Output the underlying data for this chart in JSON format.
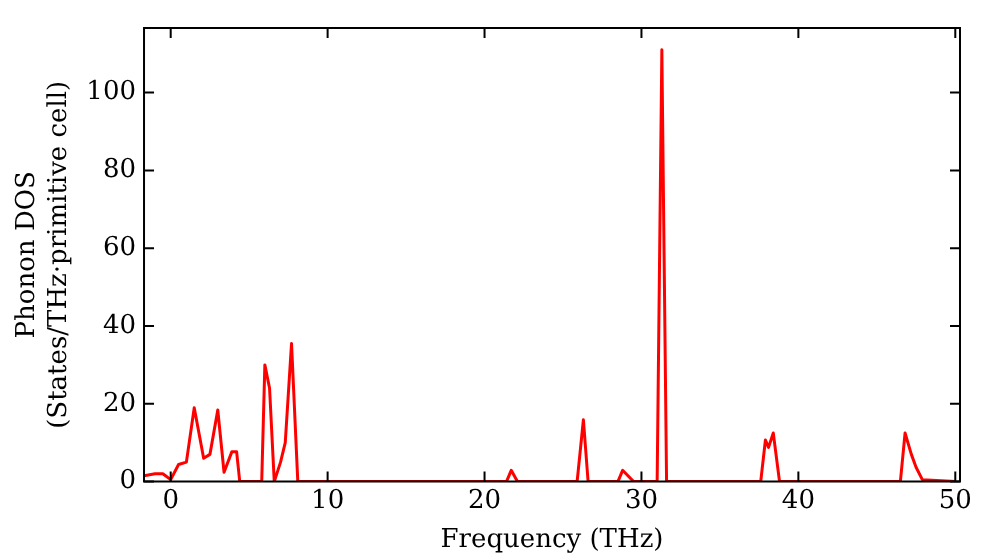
{
  "chart_data": {
    "type": "line",
    "xlabel": "Frequency (THz)",
    "ylabel": "Phonon DOS\n(States/THz·primitive cell)",
    "x": [
      -1.7,
      -1.0,
      -0.5,
      0,
      0.5,
      1.0,
      1.5,
      2.1,
      2.5,
      3.0,
      3.4,
      3.9,
      4.2,
      4.4,
      5.8,
      6.0,
      6.3,
      6.6,
      7.0,
      7.3,
      7.7,
      8.1,
      21.4,
      21.7,
      22.1,
      25.9,
      26.3,
      26.6,
      28.5,
      28.8,
      29.5,
      31.0,
      31.3,
      31.6,
      37.6,
      37.9,
      38.1,
      38.4,
      38.8,
      46.5,
      46.8,
      47.2,
      47.5,
      47.9,
      50
    ],
    "series": [
      {
        "color": "#ff0000",
        "values": [
          1.5,
          2,
          2,
          0.5,
          4.4,
          5,
          19,
          6,
          7,
          18.4,
          2.4,
          7.7,
          7.7,
          0,
          0,
          30,
          24,
          0,
          5,
          10,
          35.5,
          0,
          0,
          2.9,
          0,
          0,
          15.9,
          0,
          0,
          2.9,
          0,
          0,
          111,
          0,
          0,
          10.7,
          8.8,
          12.5,
          0,
          0,
          12.5,
          7,
          3.7,
          0.5,
          0
        ]
      }
    ],
    "xlim": [
      -1.7,
      50.3
    ],
    "ylim": [
      0,
      116.6
    ],
    "xticks": [
      0,
      10,
      20,
      30,
      40,
      50
    ],
    "yticks": [
      0,
      20,
      40,
      60,
      80,
      100
    ],
    "grid": false,
    "legend": false,
    "marker": "none",
    "line_style": "solid"
  }
}
